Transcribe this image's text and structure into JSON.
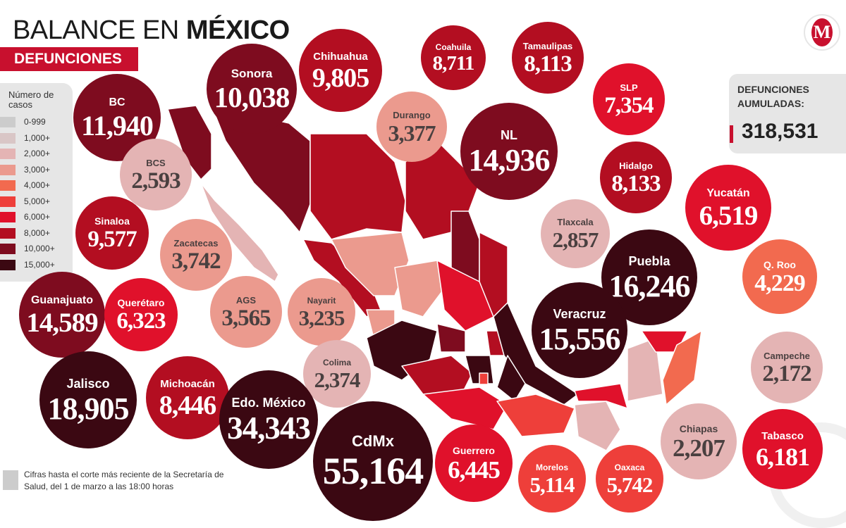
{
  "header": {
    "title_regular": "BALANCE EN ",
    "title_bold": "MÉXICO",
    "subtitle": "DEFUNCIONES"
  },
  "logo": {
    "letter": "M"
  },
  "legend": {
    "title": "Número de casos",
    "items": [
      {
        "label": "0-999",
        "color": "#cccccc"
      },
      {
        "label": "1,000+",
        "color": "#d9c6c6"
      },
      {
        "label": "2,000+",
        "color": "#e4b4b4"
      },
      {
        "label": "3,000+",
        "color": "#eb9a8e"
      },
      {
        "label": "4,000+",
        "color": "#f26a4f"
      },
      {
        "label": "5,000+",
        "color": "#ee3f3a"
      },
      {
        "label": "6,000+",
        "color": "#e0112b"
      },
      {
        "label": "8,000+",
        "color": "#b30e21"
      },
      {
        "label": "10,000+",
        "color": "#7e0c1f"
      },
      {
        "label": "15,000+",
        "color": "#3b0812"
      }
    ]
  },
  "total": {
    "label": "DEFUNCIONES AUMULADAS:",
    "value": "318,531"
  },
  "note": {
    "text": "Cifras hasta el corte más reciente de la Secretaría de Salud, del 1 de marzo a las 18:00 horas"
  },
  "states": [
    {
      "name": "BC",
      "value": "11,940",
      "color": "#7e0c1f"
    },
    {
      "name": "Sonora",
      "value": "10,038",
      "color": "#7e0c1f"
    },
    {
      "name": "Chihuahua",
      "value": "9,805",
      "color": "#b30e21"
    },
    {
      "name": "Coahuila",
      "value": "8,711",
      "color": "#b30e21"
    },
    {
      "name": "Tamaulipas",
      "value": "8,113",
      "color": "#b30e21"
    },
    {
      "name": "SLP",
      "value": "7,354",
      "color": "#e0112b"
    },
    {
      "name": "BCS",
      "value": "2,593",
      "color": "#e4b4b4"
    },
    {
      "name": "Durango",
      "value": "3,377",
      "color": "#eb9a8e"
    },
    {
      "name": "NL",
      "value": "14,936",
      "color": "#7e0c1f"
    },
    {
      "name": "Hidalgo",
      "value": "8,133",
      "color": "#b30e21"
    },
    {
      "name": "Yucatán",
      "value": "6,519",
      "color": "#e0112b"
    },
    {
      "name": "Sinaloa",
      "value": "9,577",
      "color": "#b30e21"
    },
    {
      "name": "Zacatecas",
      "value": "3,742",
      "color": "#eb9a8e"
    },
    {
      "name": "Tlaxcala",
      "value": "2,857",
      "color": "#e4b4b4"
    },
    {
      "name": "Puebla",
      "value": "16,246",
      "color": "#3b0812"
    },
    {
      "name": "Q. Roo",
      "value": "4,229",
      "color": "#f26a4f"
    },
    {
      "name": "Guanajuato",
      "value": "14,589",
      "color": "#7e0c1f"
    },
    {
      "name": "Querétaro",
      "value": "6,323",
      "color": "#e0112b"
    },
    {
      "name": "AGS",
      "value": "3,565",
      "color": "#eb9a8e"
    },
    {
      "name": "Nayarit",
      "value": "3,235",
      "color": "#eb9a8e"
    },
    {
      "name": "Veracruz",
      "value": "15,556",
      "color": "#3b0812"
    },
    {
      "name": "Campeche",
      "value": "2,172",
      "color": "#e4b4b4"
    },
    {
      "name": "Colima",
      "value": "2,374",
      "color": "#e4b4b4"
    },
    {
      "name": "Jalisco",
      "value": "18,905",
      "color": "#3b0812"
    },
    {
      "name": "Michoacán",
      "value": "8,446",
      "color": "#b30e21"
    },
    {
      "name": "Edo. México",
      "value": "34,343",
      "color": "#3b0812"
    },
    {
      "name": "CdMx",
      "value": "55,164",
      "color": "#3b0812"
    },
    {
      "name": "Guerrero",
      "value": "6,445",
      "color": "#e0112b"
    },
    {
      "name": "Morelos",
      "value": "5,114",
      "color": "#ee3f3a"
    },
    {
      "name": "Oaxaca",
      "value": "5,742",
      "color": "#ee3f3a"
    },
    {
      "name": "Chiapas",
      "value": "2,207",
      "color": "#e4b4b4"
    },
    {
      "name": "Tabasco",
      "value": "6,181",
      "color": "#e0112b"
    }
  ]
}
